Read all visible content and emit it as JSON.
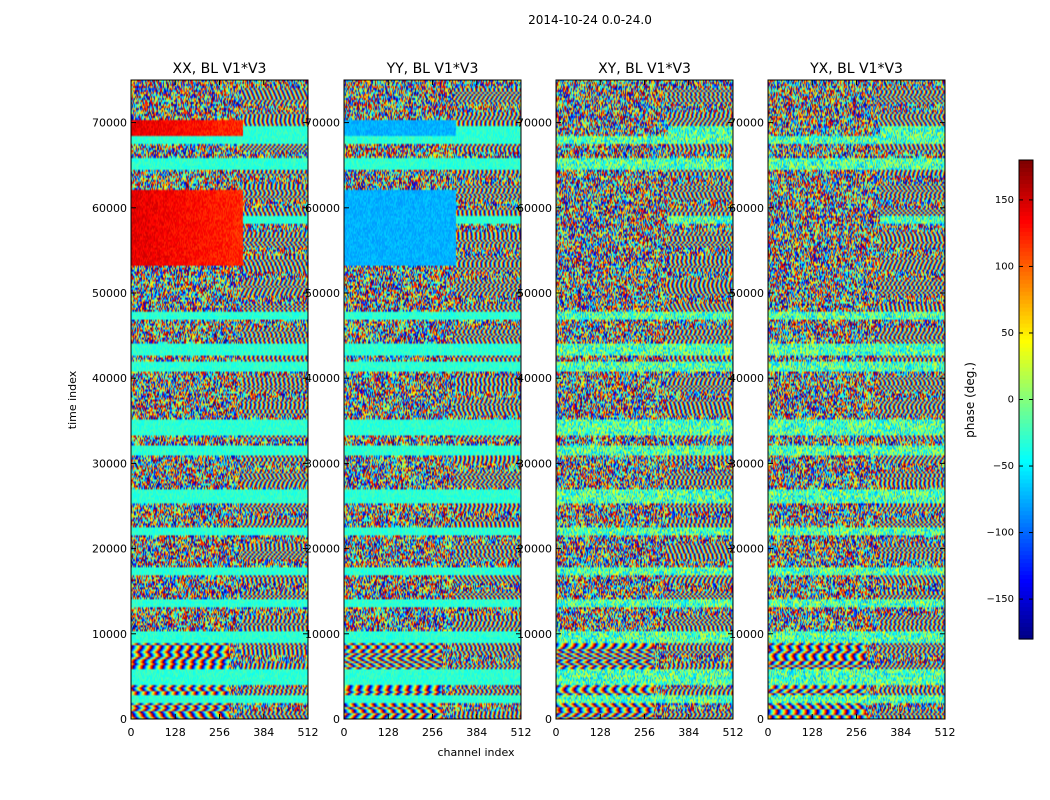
{
  "figure": {
    "suptitle": "2014-10-24 0.0-24.0"
  },
  "chart_data": {
    "type": "heatmap",
    "xlabel": "channel index",
    "ylabel": "time index",
    "xlim": [
      0,
      512
    ],
    "ylim": [
      0,
      75000
    ],
    "x_ticks": [
      0,
      128,
      256,
      384,
      512
    ],
    "y_ticks": [
      0,
      10000,
      20000,
      30000,
      40000,
      50000,
      60000,
      70000
    ],
    "panels": [
      {
        "title": "XX, BL V1*V3",
        "polarization": "XX",
        "baseline": "V1*V3"
      },
      {
        "title": "YY, BL V1*V3",
        "polarization": "YY",
        "baseline": "V1*V3"
      },
      {
        "title": "XY, BL V1*V3",
        "polarization": "XY",
        "baseline": "V1*V3"
      },
      {
        "title": "YX, BL V1*V3",
        "polarization": "YX",
        "baseline": "V1*V3"
      }
    ],
    "colorbar": {
      "label": "phase (deg.)",
      "range": [
        -180,
        180
      ],
      "ticks": [
        -150,
        -100,
        -50,
        0,
        50,
        100,
        150
      ],
      "tick_labels": [
        "−150",
        "−100",
        "−50",
        "0",
        "50",
        "100",
        "150"
      ],
      "colormap": "jet"
    }
  }
}
